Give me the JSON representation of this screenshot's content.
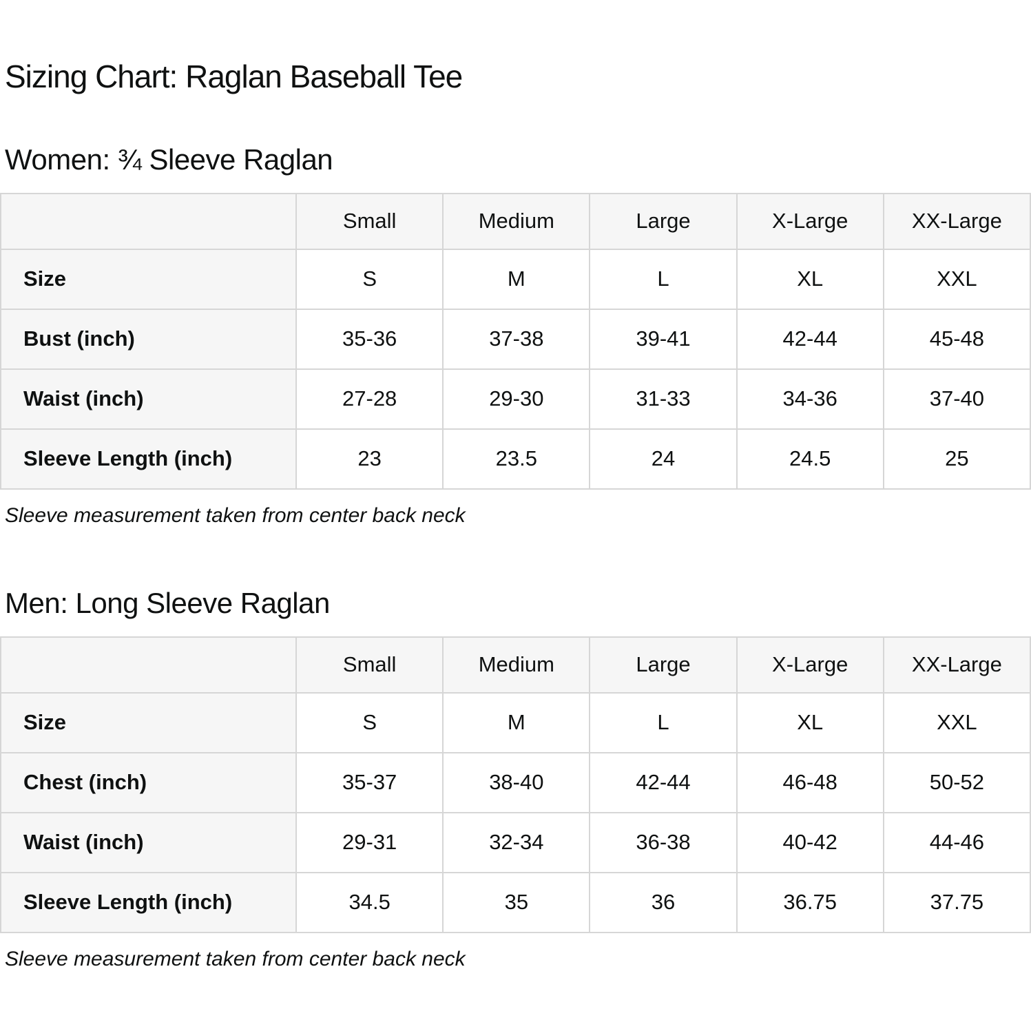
{
  "page": {
    "title": "Sizing Chart: Raglan Baseball Tee"
  },
  "colors": {
    "cell_background": "#f6f6f6",
    "border": "#d6d6d6",
    "text": "#0f1111"
  },
  "sections": [
    {
      "heading": "Women: ¾ Sleeve Raglan",
      "note": "Sleeve measurement taken from center back neck",
      "table": {
        "columns": [
          "Small",
          "Medium",
          "Large",
          "X-Large",
          "XX-Large"
        ],
        "rows": [
          {
            "label": "Size",
            "values": [
              "S",
              "M",
              "L",
              "XL",
              "XXL"
            ]
          },
          {
            "label": "Bust (inch)",
            "values": [
              "35-36",
              "37-38",
              "39-41",
              "42-44",
              "45-48"
            ]
          },
          {
            "label": "Waist (inch)",
            "values": [
              "27-28",
              "29-30",
              "31-33",
              "34-36",
              "37-40"
            ]
          },
          {
            "label": "Sleeve Length (inch)",
            "values": [
              "23",
              "23.5",
              "24",
              "24.5",
              "25"
            ]
          }
        ]
      }
    },
    {
      "heading": "Men: Long Sleeve Raglan",
      "note": "Sleeve measurement taken from center back neck",
      "table": {
        "columns": [
          "Small",
          "Medium",
          "Large",
          "X-Large",
          "XX-Large"
        ],
        "rows": [
          {
            "label": "Size",
            "values": [
              "S",
              "M",
              "L",
              "XL",
              "XXL"
            ]
          },
          {
            "label": "Chest (inch)",
            "values": [
              "35-37",
              "38-40",
              "42-44",
              "46-48",
              "50-52"
            ]
          },
          {
            "label": "Waist (inch)",
            "values": [
              "29-31",
              "32-34",
              "36-38",
              "40-42",
              "44-46"
            ]
          },
          {
            "label": "Sleeve Length (inch)",
            "values": [
              "34.5",
              "35",
              "36",
              "36.75",
              "37.75"
            ]
          }
        ]
      }
    }
  ]
}
